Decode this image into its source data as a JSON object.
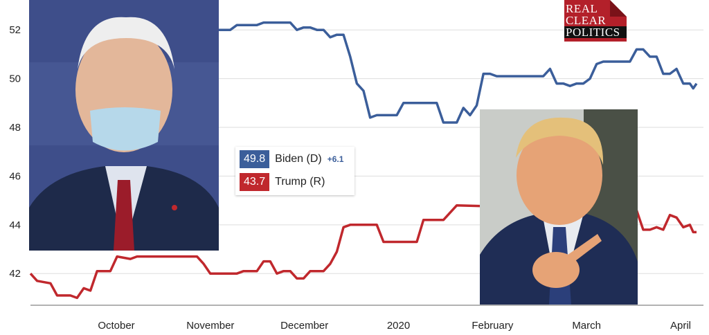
{
  "chart_data": {
    "type": "line",
    "x_labels": [
      "October",
      "November",
      "December",
      "2020",
      "February",
      "March",
      "April"
    ],
    "y_ticks": [
      42,
      44,
      46,
      48,
      50,
      52
    ],
    "ylim": [
      40.7,
      53.0
    ],
    "grid": true,
    "series": [
      {
        "name": "Biden (D)",
        "color": "#3b5e9a",
        "latest": "49.8",
        "spread": "+6.1",
        "values": [
          [
            0.0,
            52.0
          ],
          [
            0.3,
            52.0
          ],
          [
            0.31,
            52.2
          ],
          [
            0.34,
            52.2
          ],
          [
            0.35,
            52.3
          ],
          [
            0.39,
            52.3
          ],
          [
            0.4,
            52.0
          ],
          [
            0.41,
            52.1
          ],
          [
            0.42,
            52.1
          ],
          [
            0.43,
            52.0
          ],
          [
            0.44,
            52.0
          ],
          [
            0.45,
            51.7
          ],
          [
            0.46,
            51.8
          ],
          [
            0.47,
            51.8
          ],
          [
            0.48,
            50.9
          ],
          [
            0.49,
            49.8
          ],
          [
            0.5,
            49.5
          ],
          [
            0.51,
            48.4
          ],
          [
            0.52,
            48.5
          ],
          [
            0.55,
            48.5
          ],
          [
            0.56,
            49.0
          ],
          [
            0.61,
            49.0
          ],
          [
            0.62,
            48.2
          ],
          [
            0.64,
            48.2
          ],
          [
            0.65,
            48.8
          ],
          [
            0.66,
            48.5
          ],
          [
            0.67,
            48.9
          ],
          [
            0.68,
            50.2
          ],
          [
            0.69,
            50.2
          ],
          [
            0.7,
            50.1
          ],
          [
            0.77,
            50.1
          ],
          [
            0.78,
            50.4
          ],
          [
            0.79,
            49.8
          ],
          [
            0.8,
            49.8
          ],
          [
            0.81,
            49.7
          ],
          [
            0.82,
            49.8
          ],
          [
            0.83,
            49.8
          ],
          [
            0.84,
            50.0
          ],
          [
            0.85,
            50.6
          ],
          [
            0.86,
            50.7
          ],
          [
            0.87,
            50.7
          ],
          [
            0.9,
            50.7
          ],
          [
            0.91,
            51.2
          ],
          [
            0.92,
            51.2
          ],
          [
            0.93,
            50.9
          ],
          [
            0.94,
            50.9
          ],
          [
            0.95,
            50.2
          ],
          [
            0.96,
            50.2
          ],
          [
            0.97,
            50.4
          ],
          [
            0.98,
            49.8
          ],
          [
            0.99,
            49.8
          ],
          [
            0.995,
            49.6
          ],
          [
            1.0,
            49.8
          ]
        ]
      },
      {
        "name": "Trump (R)",
        "color": "#c0282d",
        "latest": "43.7",
        "values": [
          [
            0.0,
            42.0
          ],
          [
            0.01,
            41.7
          ],
          [
            0.03,
            41.6
          ],
          [
            0.04,
            41.1
          ],
          [
            0.06,
            41.1
          ],
          [
            0.07,
            41.0
          ],
          [
            0.08,
            41.4
          ],
          [
            0.09,
            41.3
          ],
          [
            0.1,
            42.1
          ],
          [
            0.12,
            42.1
          ],
          [
            0.13,
            42.7
          ],
          [
            0.15,
            42.6
          ],
          [
            0.16,
            42.7
          ],
          [
            0.25,
            42.7
          ],
          [
            0.26,
            42.4
          ],
          [
            0.27,
            42.0
          ],
          [
            0.31,
            42.0
          ],
          [
            0.32,
            42.1
          ],
          [
            0.34,
            42.1
          ],
          [
            0.35,
            42.5
          ],
          [
            0.36,
            42.5
          ],
          [
            0.37,
            42.0
          ],
          [
            0.38,
            42.1
          ],
          [
            0.39,
            42.1
          ],
          [
            0.4,
            41.8
          ],
          [
            0.41,
            41.8
          ],
          [
            0.42,
            42.1
          ],
          [
            0.44,
            42.1
          ],
          [
            0.45,
            42.4
          ],
          [
            0.46,
            42.9
          ],
          [
            0.47,
            43.9
          ],
          [
            0.48,
            44.0
          ],
          [
            0.52,
            44.0
          ],
          [
            0.53,
            43.3
          ],
          [
            0.58,
            43.3
          ],
          [
            0.59,
            44.2
          ],
          [
            0.62,
            44.2
          ],
          [
            0.63,
            44.5
          ],
          [
            0.64,
            44.8
          ],
          [
            0.91,
            44.6
          ],
          [
            0.92,
            43.8
          ],
          [
            0.93,
            43.8
          ],
          [
            0.94,
            43.9
          ],
          [
            0.95,
            43.8
          ],
          [
            0.96,
            44.4
          ],
          [
            0.97,
            44.3
          ],
          [
            0.98,
            43.9
          ],
          [
            0.99,
            44.0
          ],
          [
            0.995,
            43.7
          ],
          [
            1.0,
            43.7
          ]
        ]
      }
    ]
  },
  "logo": {
    "line1": "REAL",
    "line2": "CLEAR",
    "line3": "POLITICS"
  }
}
